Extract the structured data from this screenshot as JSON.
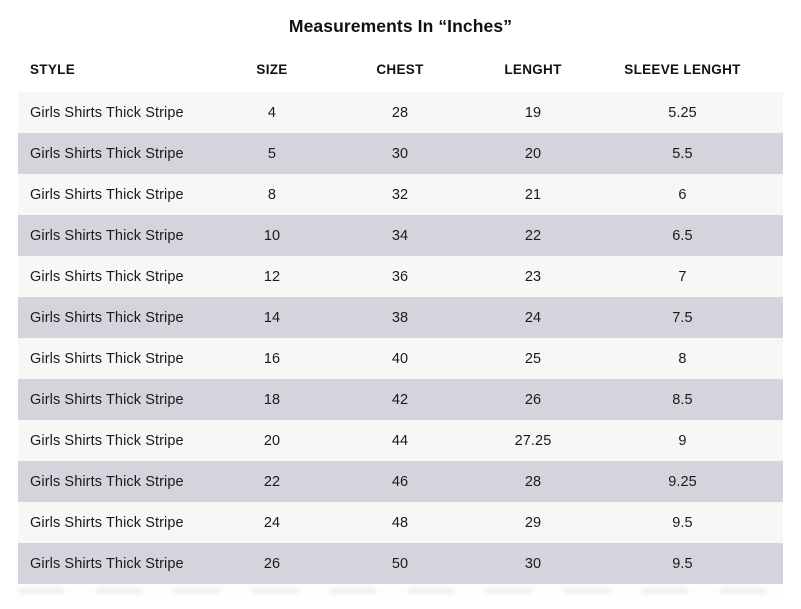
{
  "title": "Measurements In “Inches”",
  "table": {
    "headers": [
      "STYLE",
      "SIZE",
      "CHEST",
      "LENGHT",
      "SLEEVE LENGHT"
    ],
    "rows": [
      {
        "style": "Girls Shirts Thick Stripe",
        "size": "4",
        "chest": "28",
        "length": "19",
        "sleeve": "5.25"
      },
      {
        "style": "Girls Shirts Thick Stripe",
        "size": "5",
        "chest": "30",
        "length": "20",
        "sleeve": "5.5"
      },
      {
        "style": "Girls Shirts Thick Stripe",
        "size": "8",
        "chest": "32",
        "length": "21",
        "sleeve": "6"
      },
      {
        "style": "Girls Shirts Thick Stripe",
        "size": "10",
        "chest": "34",
        "length": "22",
        "sleeve": "6.5"
      },
      {
        "style": "Girls Shirts Thick Stripe",
        "size": "12",
        "chest": "36",
        "length": "23",
        "sleeve": "7"
      },
      {
        "style": "Girls Shirts Thick Stripe",
        "size": "14",
        "chest": "38",
        "length": "24",
        "sleeve": "7.5"
      },
      {
        "style": "Girls Shirts Thick Stripe",
        "size": "16",
        "chest": "40",
        "length": "25",
        "sleeve": "8"
      },
      {
        "style": "Girls Shirts Thick Stripe",
        "size": "18",
        "chest": "42",
        "length": "26",
        "sleeve": "8.5"
      },
      {
        "style": "Girls Shirts Thick Stripe",
        "size": "20",
        "chest": "44",
        "length": "27.25",
        "sleeve": "9"
      },
      {
        "style": "Girls Shirts Thick Stripe",
        "size": "22",
        "chest": "46",
        "length": "28",
        "sleeve": "9.25"
      },
      {
        "style": "Girls Shirts Thick Stripe",
        "size": "24",
        "chest": "48",
        "length": "29",
        "sleeve": "9.5"
      },
      {
        "style": "Girls Shirts Thick Stripe",
        "size": "26",
        "chest": "50",
        "length": "30",
        "sleeve": "9.5"
      }
    ]
  },
  "colors": {
    "background": "#ffffff",
    "row_light": "#f8f7f5",
    "row_shaded": "#d4d4dc",
    "text": "#1a1a1a"
  },
  "chart_data": {
    "type": "table",
    "title": "Measurements In “Inches”",
    "columns": [
      "STYLE",
      "SIZE",
      "CHEST",
      "LENGHT",
      "SLEEVE LENGHT"
    ],
    "rows": [
      [
        "Girls Shirts Thick Stripe",
        4,
        28,
        19,
        5.25
      ],
      [
        "Girls Shirts Thick Stripe",
        5,
        30,
        20,
        5.5
      ],
      [
        "Girls Shirts Thick Stripe",
        8,
        32,
        21,
        6
      ],
      [
        "Girls Shirts Thick Stripe",
        10,
        34,
        22,
        6.5
      ],
      [
        "Girls Shirts Thick Stripe",
        12,
        36,
        23,
        7
      ],
      [
        "Girls Shirts Thick Stripe",
        14,
        38,
        24,
        7.5
      ],
      [
        "Girls Shirts Thick Stripe",
        16,
        40,
        25,
        8
      ],
      [
        "Girls Shirts Thick Stripe",
        18,
        42,
        26,
        8.5
      ],
      [
        "Girls Shirts Thick Stripe",
        20,
        44,
        27.25,
        9
      ],
      [
        "Girls Shirts Thick Stripe",
        22,
        46,
        28,
        9.25
      ],
      [
        "Girls Shirts Thick Stripe",
        24,
        48,
        29,
        9.5
      ],
      [
        "Girls Shirts Thick Stripe",
        26,
        50,
        30,
        9.5
      ]
    ],
    "layout": {
      "row_striping": true,
      "first_column_align": "left",
      "other_columns_align": "center"
    }
  }
}
